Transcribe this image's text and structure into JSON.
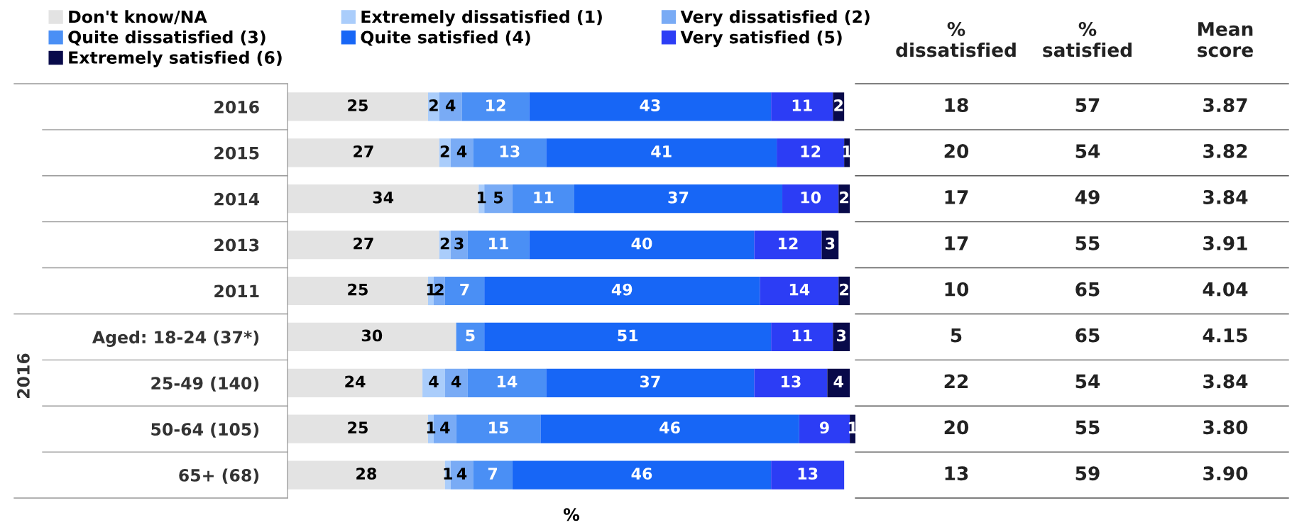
{
  "chart_data": {
    "type": "bar",
    "orientation": "horizontal",
    "stacked": true,
    "data_labels": true,
    "legend": "top left",
    "grid": false,
    "xlabel": "%",
    "xlim": [
      0,
      101
    ],
    "tick_labels": "y",
    "categories": [
      "2016",
      "2015",
      "2014",
      "2013",
      "2011",
      "Aged: 18-24 (37*)",
      "25-49 (140)",
      "50-64 (105)",
      "65+ (68)"
    ],
    "annotations": [
      "2016",
      "% dissatisfied",
      "% satisfied",
      "Mean score",
      "18",
      "57",
      "3.87",
      "20",
      "54",
      "3.82",
      "17",
      "49",
      "3.84",
      "17",
      "55",
      "3.91",
      "10",
      "65",
      "4.04",
      "5",
      "65",
      "4.15",
      "22",
      "54",
      "3.84",
      "20",
      "55",
      "3.80",
      "13",
      "59",
      "3.90"
    ],
    "series": [
      {
        "name": "Don't know/NA",
        "color": "#e3e3e3",
        "values": [
          25,
          27,
          34,
          27,
          25,
          30,
          24,
          25,
          28
        ]
      },
      {
        "name": "Extremely dissatisfied (1)",
        "color": "#aacdfb",
        "values": [
          2,
          2,
          1,
          2,
          1,
          null,
          4,
          1,
          1
        ]
      },
      {
        "name": "Very dissatisfied (2)",
        "color": "#79abf5",
        "values": [
          4,
          4,
          5,
          3,
          2,
          null,
          4,
          4,
          4
        ]
      },
      {
        "name": "Quite dissatisfied (3)",
        "color": "#4a8ff5",
        "values": [
          12,
          13,
          11,
          11,
          7,
          5,
          14,
          15,
          7
        ]
      },
      {
        "name": "Quite satisfied (4)",
        "color": "#1766f6",
        "values": [
          43,
          41,
          37,
          40,
          49,
          51,
          37,
          46,
          46
        ]
      },
      {
        "name": "Very satisfied (5)",
        "color": "#2c3df5",
        "values": [
          11,
          12,
          10,
          12,
          14,
          11,
          13,
          9,
          13
        ]
      },
      {
        "name": "Extremely satisfied (6)",
        "color": "#080a4a",
        "values": [
          2,
          1,
          2,
          3,
          2,
          3,
          4,
          1,
          null
        ]
      }
    ]
  }
}
